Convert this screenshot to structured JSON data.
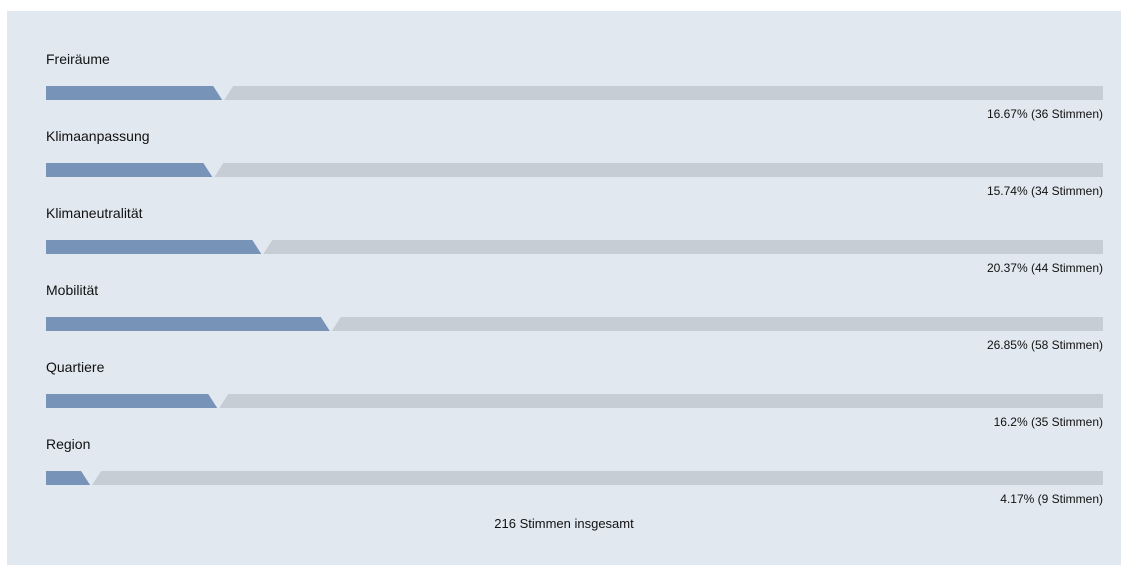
{
  "chart_data": {
    "type": "bar",
    "orientation": "horizontal",
    "categories": [
      "Freiräume",
      "Klimaanpassung",
      "Klimaneutralität",
      "Mobilität",
      "Quartiere",
      "Region"
    ],
    "values": [
      16.67,
      15.74,
      20.37,
      26.85,
      16.2,
      4.17
    ],
    "votes": [
      36,
      34,
      44,
      58,
      35,
      9
    ],
    "result_labels": [
      "16.67% (36 Stimmen)",
      "15.74% (34 Stimmen)",
      "20.37% (44 Stimmen)",
      "26.85% (58 Stimmen)",
      "16.2% (35 Stimmen)",
      "4.17% (9 Stimmen)"
    ],
    "xlim": [
      0,
      100
    ],
    "colors": {
      "fill": "#7893b8",
      "track": "#c6cdd5",
      "background": "#e1e8ef"
    }
  },
  "total_label": "216 Stimmen insgesamt"
}
